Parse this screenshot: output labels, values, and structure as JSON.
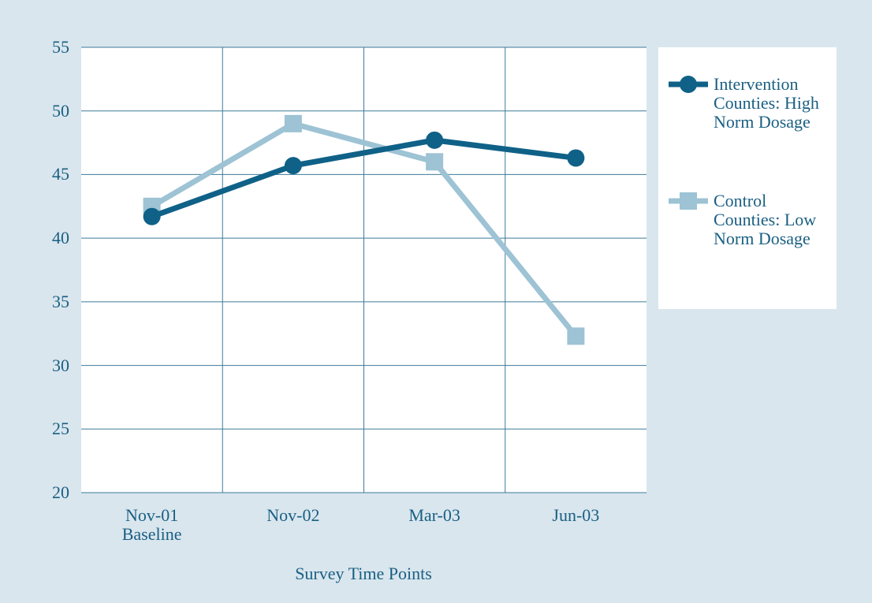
{
  "chart_data": {
    "type": "line",
    "x_label": "Survey Time Points",
    "categories": [
      "Nov-01 Baseline",
      "Nov-02",
      "Mar-03",
      "Jun-03"
    ],
    "series": [
      {
        "name": "Intervention Counties: High Norm Dosage",
        "color": "#0f6187",
        "marker": "circle",
        "values": [
          41.7,
          45.7,
          47.7,
          46.3
        ]
      },
      {
        "name": "Control Counties: Low Norm Dosage",
        "color": "#9dc3d4",
        "marker": "square",
        "values": [
          42.5,
          49.0,
          46.0,
          32.3
        ]
      }
    ],
    "ylim": [
      20,
      55
    ],
    "yticks": [
      20,
      25,
      30,
      35,
      40,
      45,
      50,
      55
    ],
    "grid": true
  }
}
